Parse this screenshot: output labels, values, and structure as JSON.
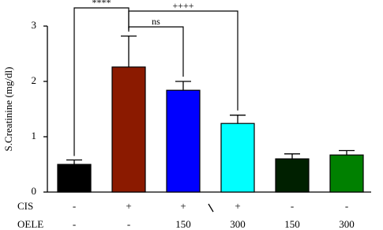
{
  "chart_data": {
    "type": "bar",
    "y_label": "S.Creatinine (mg/dl)",
    "values": [
      0.5,
      2.26,
      1.84,
      1.24,
      0.6,
      0.67
    ],
    "errors": [
      0.08,
      0.56,
      0.16,
      0.15,
      0.09,
      0.08
    ],
    "colors": [
      "#000000",
      "#8b1a00",
      "#0000ff",
      "#00ffff",
      "#002000",
      "#008000"
    ],
    "ylim": [
      0,
      3
    ],
    "yticks": [
      0,
      1,
      2,
      3
    ],
    "annotations": [
      "****",
      "ns",
      "++++"
    ],
    "rows": [
      {
        "label": "CIS",
        "values": [
          "-",
          "+",
          "+",
          "+",
          "-",
          "-"
        ]
      },
      {
        "label": "OELE",
        "values": [
          "-",
          "-",
          "150",
          "300",
          "150",
          "300"
        ]
      }
    ]
  }
}
